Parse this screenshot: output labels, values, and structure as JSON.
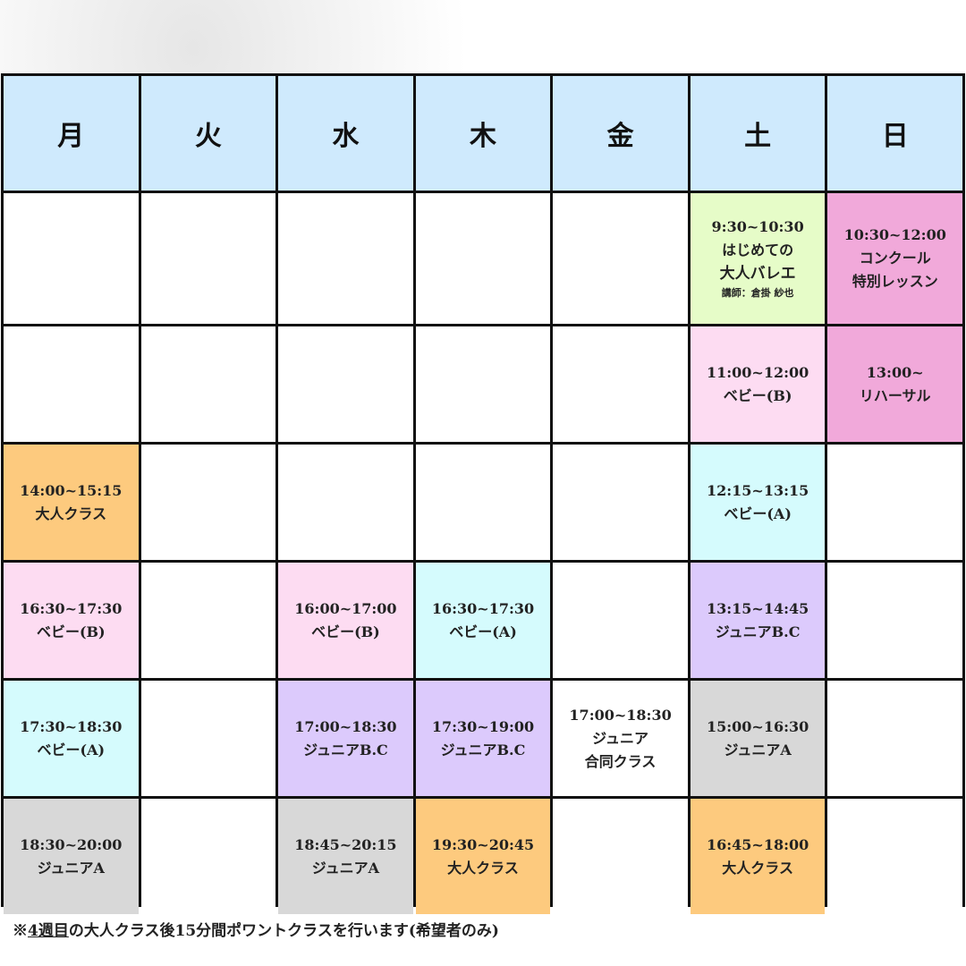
{
  "colors": {
    "header": "#cfeafd",
    "green": "#e6fcc8",
    "deep_pink": "#f1a9da",
    "pink": "#fddcf2",
    "cyan": "#d5fbfd",
    "orange": "#fdca7e",
    "purple": "#dccafc",
    "gray": "#d8d8d8",
    "empty": "#ffffff"
  },
  "days": [
    "月",
    "火",
    "水",
    "木",
    "金",
    "土",
    "日"
  ],
  "rows": [
    [
      null,
      null,
      null,
      null,
      null,
      {
        "lines": [
          "9:30~10:30",
          "はじめての",
          "大人バレエ"
        ],
        "small": "講師：倉掛 紗也",
        "color": "green"
      },
      {
        "lines": [
          "10:30~12:00",
          "コンクール",
          "特別レッスン"
        ],
        "color": "deep_pink"
      }
    ],
    [
      null,
      null,
      null,
      null,
      null,
      {
        "lines": [
          "11:00~12:00",
          "ベビー(B)"
        ],
        "color": "pink"
      },
      {
        "lines": [
          "13:00~",
          "リハーサル"
        ],
        "color": "deep_pink"
      }
    ],
    [
      {
        "lines": [
          "14:00~15:15",
          "大人クラス"
        ],
        "color": "orange"
      },
      null,
      null,
      null,
      null,
      {
        "lines": [
          "12:15~13:15",
          "ベビー(A)"
        ],
        "color": "cyan"
      },
      null
    ],
    [
      {
        "lines": [
          "16:30~17:30",
          "ベビー(B)"
        ],
        "color": "pink"
      },
      null,
      {
        "lines": [
          "16:00~17:00",
          "ベビー(B)"
        ],
        "color": "pink"
      },
      {
        "lines": [
          "16:30~17:30",
          "ベビー(A)"
        ],
        "color": "cyan"
      },
      null,
      {
        "lines": [
          "13:15~14:45",
          "ジュニアB.C"
        ],
        "color": "purple"
      },
      null
    ],
    [
      {
        "lines": [
          "17:30~18:30",
          "ベビー(A)"
        ],
        "color": "cyan"
      },
      null,
      {
        "lines": [
          "17:00~18:30",
          "ジュニアB.C"
        ],
        "color": "purple"
      },
      {
        "lines": [
          "17:30~19:00",
          "ジュニアB.C"
        ],
        "color": "purple"
      },
      {
        "lines": [
          "17:00~18:30",
          "ジュニア",
          "合同クラス"
        ],
        "color": "empty"
      },
      {
        "lines": [
          "15:00~16:30",
          "ジュニアA"
        ],
        "color": "gray"
      },
      null
    ],
    [
      {
        "lines": [
          "18:30~20:00",
          "ジュニアA"
        ],
        "color": "gray"
      },
      null,
      {
        "lines": [
          "18:45~20:15",
          "ジュニアA"
        ],
        "color": "gray"
      },
      {
        "lines": [
          "19:30~20:45",
          "大人クラス"
        ],
        "color": "orange"
      },
      null,
      {
        "lines": [
          "16:45~18:00",
          "大人クラス"
        ],
        "color": "orange"
      },
      null
    ]
  ],
  "note": {
    "prefix": "※",
    "underlined": "4週目",
    "rest": "の大人クラス後15分間ポワントクラスを行います(希望者のみ)"
  }
}
